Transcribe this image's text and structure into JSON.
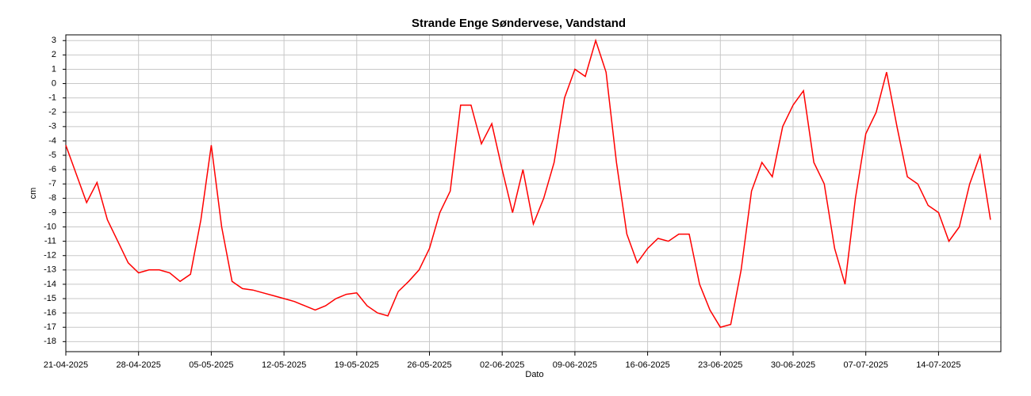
{
  "chart_data": {
    "type": "line",
    "title": "Strande Enge Søndervese, Vandstand",
    "xlabel": "Dato",
    "ylabel": "cm",
    "x": [
      "21-04-2025",
      "22-04-2025",
      "23-04-2025",
      "24-04-2025",
      "25-04-2025",
      "26-04-2025",
      "27-04-2025",
      "28-04-2025",
      "29-04-2025",
      "30-04-2025",
      "01-05-2025",
      "02-05-2025",
      "03-05-2025",
      "04-05-2025",
      "05-05-2025",
      "06-05-2025",
      "07-05-2025",
      "08-05-2025",
      "09-05-2025",
      "10-05-2025",
      "11-05-2025",
      "12-05-2025",
      "13-05-2025",
      "14-05-2025",
      "15-05-2025",
      "16-05-2025",
      "17-05-2025",
      "18-05-2025",
      "19-05-2025",
      "20-05-2025",
      "21-05-2025",
      "22-05-2025",
      "23-05-2025",
      "24-05-2025",
      "25-05-2025",
      "26-05-2025",
      "27-05-2025",
      "28-05-2025",
      "29-05-2025",
      "30-05-2025",
      "31-05-2025",
      "01-06-2025",
      "02-06-2025",
      "03-06-2025",
      "04-06-2025",
      "05-06-2025",
      "06-06-2025",
      "07-06-2025",
      "08-06-2025",
      "09-06-2025",
      "10-06-2025",
      "11-06-2025",
      "12-06-2025",
      "13-06-2025",
      "14-06-2025",
      "15-06-2025",
      "16-06-2025",
      "17-06-2025",
      "18-06-2025",
      "19-06-2025",
      "20-06-2025",
      "21-06-2025",
      "22-06-2025",
      "23-06-2025",
      "24-06-2025",
      "25-06-2025",
      "26-06-2025",
      "27-06-2025",
      "28-06-2025",
      "29-06-2025",
      "30-06-2025",
      "01-07-2025",
      "02-07-2025",
      "03-07-2025",
      "04-07-2025",
      "05-07-2025",
      "06-07-2025",
      "07-07-2025",
      "08-07-2025",
      "09-07-2025",
      "10-07-2025",
      "11-07-2025",
      "12-07-2025",
      "13-07-2025",
      "14-07-2025",
      "15-07-2025",
      "16-07-2025",
      "17-07-2025",
      "18-07-2025",
      "19-07-2025"
    ],
    "series": [
      {
        "name": "Vandstand",
        "color": "#ff0000",
        "values": [
          -4.3,
          -6.3,
          -8.3,
          -6.9,
          -9.5,
          -11.0,
          -12.5,
          -13.2,
          -13.0,
          -13.0,
          -13.2,
          -13.8,
          -13.3,
          -9.5,
          -4.3,
          -10.0,
          -13.8,
          -14.3,
          -14.4,
          -14.6,
          -14.8,
          -15.0,
          -15.2,
          -15.5,
          -15.8,
          -15.5,
          -15.0,
          -14.7,
          -14.6,
          -15.5,
          -16.0,
          -16.2,
          -14.5,
          -13.8,
          -13.0,
          -11.5,
          -9.0,
          -7.5,
          -1.5,
          -1.5,
          -4.2,
          -2.8,
          -6.0,
          -9.0,
          -6.0,
          -9.8,
          -8.0,
          -5.5,
          -1.0,
          1.0,
          0.5,
          3.0,
          0.8,
          -5.5,
          -10.5,
          -12.5,
          -11.5,
          -10.8,
          -11.0,
          -10.5,
          -10.5,
          -14.0,
          -15.8,
          -17.0,
          -16.8,
          -13.0,
          -7.5,
          -5.5,
          -6.5,
          -3.0,
          -1.5,
          -0.5,
          -5.5,
          -7.0,
          -11.5,
          -14.0,
          -8.0,
          -3.5,
          -2.0,
          0.8,
          -3.0,
          -6.5,
          -7.0,
          -8.5,
          -9.0,
          -11.0,
          -10.0,
          -7.0,
          -5.0,
          -9.5
        ]
      }
    ],
    "xlim": [
      "21-04-2025",
      "20-07-2025"
    ],
    "xticks": [
      "21-04-2025",
      "28-04-2025",
      "05-05-2025",
      "12-05-2025",
      "19-05-2025",
      "26-05-2025",
      "02-06-2025",
      "09-06-2025",
      "16-06-2025",
      "23-06-2025",
      "30-06-2025",
      "07-07-2025",
      "14-07-2025"
    ],
    "ylim": [
      -18.7,
      3.4
    ],
    "yticks": [
      -18,
      -17,
      -16,
      -15,
      -14,
      -13,
      -12,
      -11,
      -10,
      -9,
      -8,
      -7,
      -6,
      -5,
      -4,
      -3,
      -2,
      -1,
      0,
      1,
      2,
      3
    ],
    "grid": true
  }
}
